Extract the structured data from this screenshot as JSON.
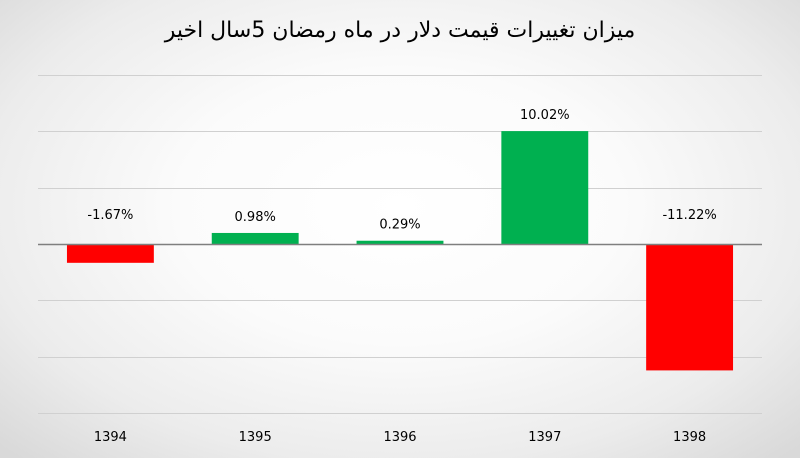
{
  "chart_data": {
    "type": "bar",
    "title": "میزان تغییرات قیمت دلار در ماه رمضان 5سال اخیر",
    "categories": [
      "1394",
      "1395",
      "1396",
      "1397",
      "1398"
    ],
    "values": [
      -1.67,
      0.98,
      0.29,
      10.02,
      -11.22
    ],
    "data_labels": [
      "-1.67%",
      "0.98%",
      "0.29%",
      "10.02%",
      "-11.22%"
    ],
    "ylim": [
      -15,
      15
    ],
    "y_step": 5,
    "grid": true,
    "legend": "none",
    "colors": {
      "positive": "#00b050",
      "negative": "#ff0000",
      "gridline": "#d0d0d0",
      "zero_line": "#7f7f7f"
    }
  }
}
